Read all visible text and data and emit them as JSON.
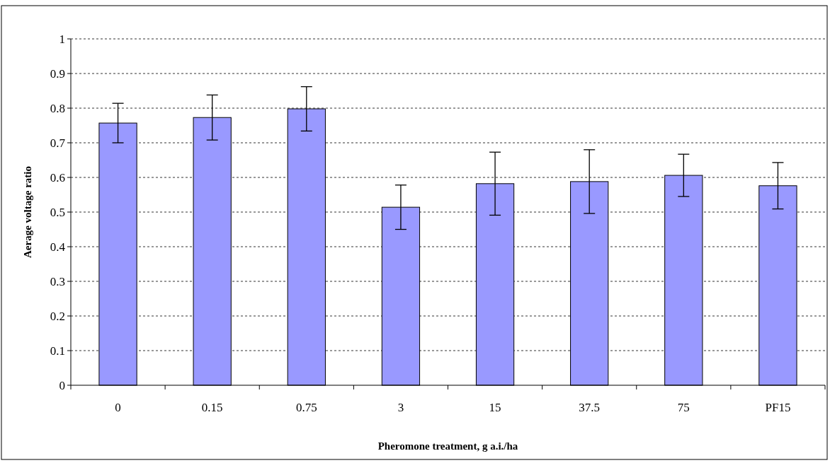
{
  "chart_data": {
    "type": "bar",
    "xlabel": "Pheromone treatment, g a.i./ha",
    "ylabel": "Aerage voltage ratio",
    "categories": [
      "0",
      "0.15",
      "0.75",
      "3",
      "15",
      "37.5",
      "75",
      "PF15"
    ],
    "values": [
      0.757,
      0.773,
      0.798,
      0.514,
      0.582,
      0.588,
      0.606,
      0.576
    ],
    "errors": [
      0.057,
      0.065,
      0.064,
      0.064,
      0.091,
      0.092,
      0.061,
      0.067
    ],
    "color": "#9999ff",
    "ylim": [
      0,
      1
    ],
    "yticks": [
      0,
      0.1,
      0.2,
      0.3,
      0.4,
      0.5,
      0.6,
      0.7,
      0.8,
      0.9,
      1
    ],
    "grid": "y"
  }
}
